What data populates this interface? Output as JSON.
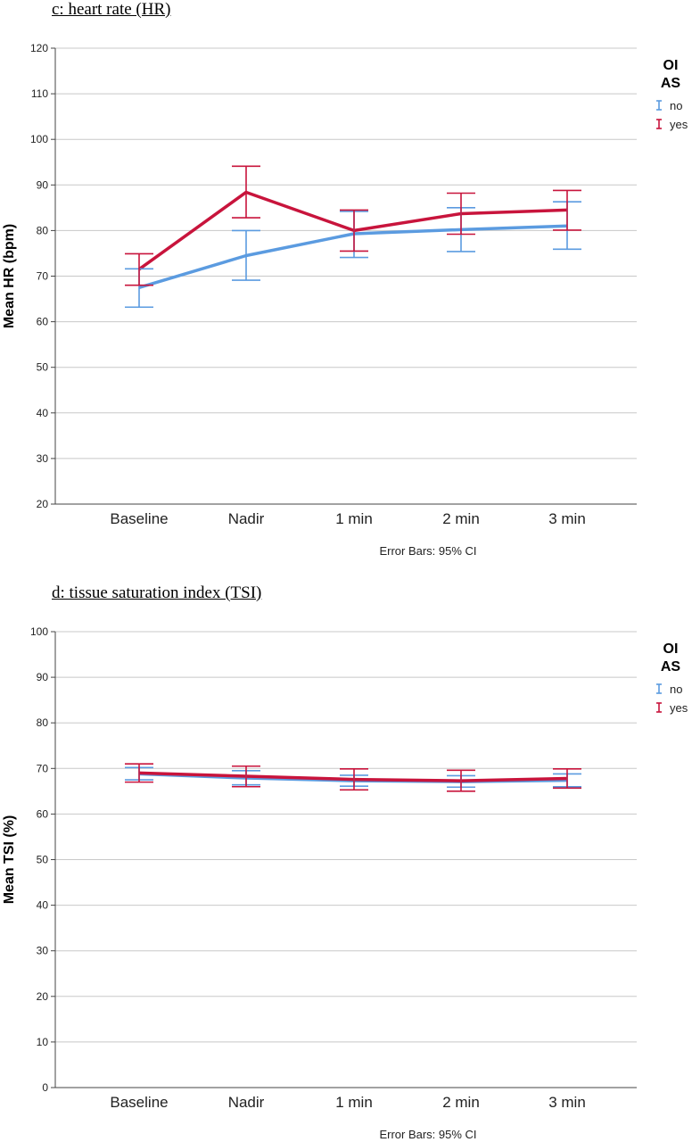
{
  "chart_data": [
    {
      "type": "line",
      "title": "c: heart rate (HR)",
      "ylabel": "Mean HR (bpm)",
      "xlabel": "",
      "ylim": [
        20,
        120
      ],
      "yticks": [
        20,
        30,
        40,
        50,
        60,
        70,
        80,
        90,
        100,
        110,
        120
      ],
      "categories": [
        "Baseline",
        "Nadir",
        "1 min",
        "2 min",
        "3 min"
      ],
      "legend": {
        "title_lines": [
          "OI",
          "AS"
        ],
        "placement": "right"
      },
      "note": "Error Bars: 95% CI",
      "grid": true,
      "series": [
        {
          "name": "no",
          "color": "#5b9be0",
          "values": [
            67.5,
            74.5,
            79.3,
            80.2,
            81.0
          ],
          "ci_low": [
            63.2,
            69.1,
            74.1,
            75.4,
            75.9
          ],
          "ci_high": [
            71.6,
            80.0,
            84.2,
            85.0,
            86.3
          ]
        },
        {
          "name": "yes",
          "color": "#c8143c",
          "values": [
            71.5,
            88.4,
            80.0,
            83.7,
            84.5
          ],
          "ci_low": [
            68.0,
            82.8,
            75.5,
            79.2,
            80.1
          ],
          "ci_high": [
            74.9,
            94.1,
            84.5,
            88.2,
            88.8
          ]
        }
      ]
    },
    {
      "type": "line",
      "title": "d: tissue saturation index (TSI)",
      "ylabel": "Mean TSI (%)",
      "xlabel": "",
      "ylim": [
        0,
        100
      ],
      "yticks": [
        0,
        10,
        20,
        30,
        40,
        50,
        60,
        70,
        80,
        90,
        100
      ],
      "categories": [
        "Baseline",
        "Nadir",
        "1 min",
        "2 min",
        "3 min"
      ],
      "legend": {
        "title_lines": [
          "OI",
          "AS"
        ],
        "placement": "right"
      },
      "note": "Error Bars: 95% CI",
      "grid": true,
      "series": [
        {
          "name": "no",
          "color": "#5b9be0",
          "values": [
            68.8,
            67.9,
            67.3,
            67.1,
            67.4
          ],
          "ci_low": [
            67.5,
            66.4,
            66.1,
            65.9,
            66.0
          ],
          "ci_high": [
            70.2,
            69.5,
            68.5,
            68.4,
            68.8
          ]
        },
        {
          "name": "yes",
          "color": "#c8143c",
          "values": [
            69.0,
            68.3,
            67.6,
            67.3,
            67.8
          ],
          "ci_low": [
            67.0,
            66.0,
            65.3,
            65.0,
            65.7
          ],
          "ci_high": [
            71.0,
            70.5,
            69.9,
            69.6,
            69.9
          ]
        }
      ]
    }
  ]
}
